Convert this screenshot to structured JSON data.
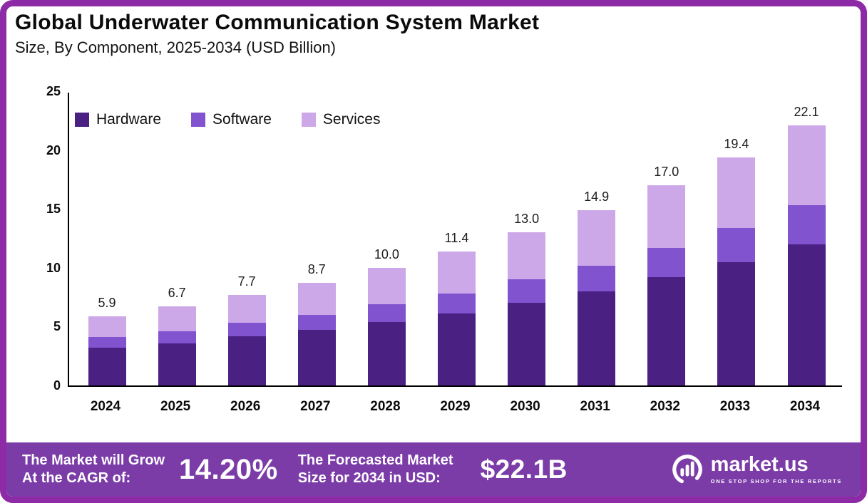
{
  "chart_data": {
    "type": "bar",
    "stacked": true,
    "title": "Global Underwater Communication System Market",
    "subtitle": "Size, By Component, 2025-2034 (USD Billion)",
    "categories": [
      "2024",
      "2025",
      "2026",
      "2027",
      "2028",
      "2029",
      "2030",
      "2031",
      "2032",
      "2033",
      "2034"
    ],
    "series": [
      {
        "name": "Hardware",
        "color": "#4A2083",
        "values": [
          3.2,
          3.6,
          4.2,
          4.7,
          5.4,
          6.1,
          7.0,
          8.0,
          9.2,
          10.5,
          12.0
        ]
      },
      {
        "name": "Software",
        "color": "#8153CE",
        "values": [
          0.9,
          1.0,
          1.1,
          1.3,
          1.5,
          1.7,
          2.0,
          2.2,
          2.5,
          2.9,
          3.3
        ]
      },
      {
        "name": "Services",
        "color": "#CDA8E9",
        "values": [
          1.8,
          2.1,
          2.4,
          2.7,
          3.1,
          3.6,
          4.0,
          4.7,
          5.3,
          6.0,
          6.8
        ]
      }
    ],
    "totals": [
      "5.9",
      "6.7",
      "7.7",
      "8.7",
      "10.0",
      "11.4",
      "13.0",
      "14.9",
      "17.0",
      "19.4",
      "22.1"
    ],
    "xlabel": "",
    "ylabel": "",
    "ylim": [
      0,
      25
    ],
    "yticks": [
      0,
      5,
      10,
      15,
      20,
      25
    ],
    "grid": false,
    "legend_position": "top-left"
  },
  "footer": {
    "cagr_label_line1": "The Market will Grow",
    "cagr_label_line2": "At the CAGR of:",
    "cagr_value": "14.20%",
    "forecast_label_line1": "The Forecasted Market",
    "forecast_label_line2": "Size for 2034 in USD:",
    "forecast_value": "$22.1B",
    "brand": {
      "name": "market.us",
      "tagline": "ONE STOP SHOP FOR THE REPORTS"
    }
  },
  "colors": {
    "border": "#8D2BA6",
    "banner": "#7B3CA8",
    "hardware": "#4A2083",
    "software": "#8153CE",
    "services": "#CDA8E9"
  }
}
